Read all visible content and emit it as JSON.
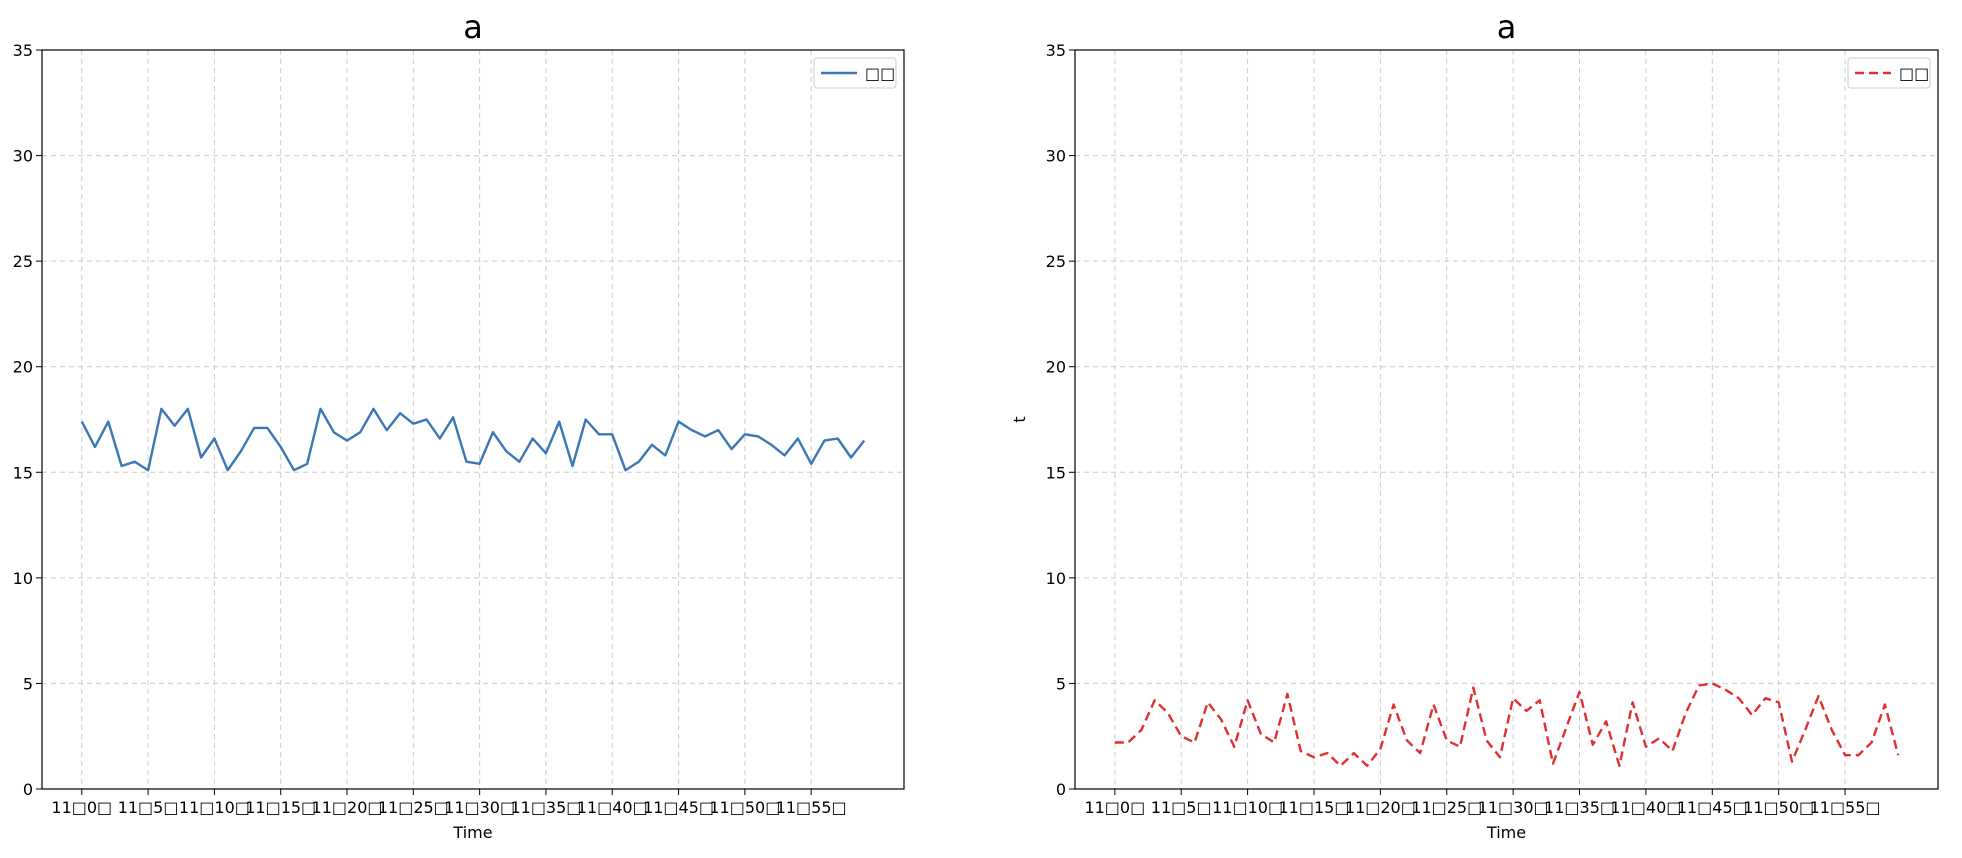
{
  "chart_data": [
    {
      "type": "line",
      "title": "a",
      "xlabel": "Time",
      "ylabel": "",
      "ylim": [
        0,
        35
      ],
      "yticks": [
        0,
        5,
        10,
        15,
        20,
        25,
        30,
        35
      ],
      "x": [
        0,
        1,
        2,
        3,
        4,
        5,
        6,
        7,
        8,
        9,
        10,
        11,
        12,
        13,
        14,
        15,
        16,
        17,
        18,
        19,
        20,
        21,
        22,
        23,
        24,
        25,
        26,
        27,
        28,
        29,
        30,
        31,
        32,
        33,
        34,
        35,
        36,
        37,
        38,
        39,
        40,
        41,
        42,
        43,
        44,
        45,
        46,
        47,
        48,
        49,
        50,
        51,
        52,
        53,
        54,
        55,
        56,
        57,
        58,
        59
      ],
      "xticks": [
        0,
        5,
        10,
        15,
        20,
        25,
        30,
        35,
        40,
        45,
        50,
        55
      ],
      "xtick_labels": [
        "11□0□",
        "11□5□",
        "11□10□",
        "11□15□",
        "11□20□",
        "11□25□",
        "11□30□",
        "11□35□",
        "11□40□",
        "11□45□",
        "11□50□",
        "11□55□"
      ],
      "grid": true,
      "legend_position": "top-right",
      "series": [
        {
          "name": "□□",
          "color": "#3a78b5",
          "style": "solid",
          "values": [
            17.4,
            16.2,
            17.4,
            15.3,
            15.5,
            15.1,
            18.0,
            17.2,
            18.0,
            15.7,
            16.6,
            15.1,
            16.0,
            17.1,
            17.1,
            16.2,
            15.1,
            15.4,
            18.0,
            16.9,
            16.5,
            16.9,
            18.0,
            17.0,
            17.8,
            17.3,
            17.5,
            16.6,
            17.6,
            15.5,
            15.4,
            16.9,
            16.0,
            15.5,
            16.6,
            15.9,
            17.4,
            15.3,
            17.5,
            16.8,
            16.8,
            15.1,
            15.5,
            16.3,
            15.8,
            17.4,
            17.0,
            16.7,
            17.0,
            16.1,
            16.8,
            16.7,
            16.3,
            15.8,
            16.6,
            15.4,
            16.5,
            16.6,
            15.7,
            16.5
          ]
        }
      ]
    },
    {
      "type": "line",
      "title": "a",
      "xlabel": "Time",
      "ylabel": "t",
      "ylim": [
        0,
        35
      ],
      "yticks": [
        0,
        5,
        10,
        15,
        20,
        25,
        30,
        35
      ],
      "x": [
        0,
        1,
        2,
        3,
        4,
        5,
        6,
        7,
        8,
        9,
        10,
        11,
        12,
        13,
        14,
        15,
        16,
        17,
        18,
        19,
        20,
        21,
        22,
        23,
        24,
        25,
        26,
        27,
        28,
        29,
        30,
        31,
        32,
        33,
        34,
        35,
        36,
        37,
        38,
        39,
        40,
        41,
        42,
        43,
        44,
        45,
        46,
        47,
        48,
        49,
        50,
        51,
        52,
        53,
        54,
        55,
        56,
        57,
        58,
        59
      ],
      "xticks": [
        0,
        5,
        10,
        15,
        20,
        25,
        30,
        35,
        40,
        45,
        50,
        55
      ],
      "xtick_labels": [
        "11□0□",
        "11□5□",
        "11□10□",
        "11□15□",
        "11□20□",
        "11□25□",
        "11□30□",
        "11□35□",
        "11□40□",
        "11□45□",
        "11□50□",
        "11□55□"
      ],
      "grid": true,
      "legend_position": "top-right",
      "series": [
        {
          "name": "□□",
          "color": "#e03030",
          "style": "dashed",
          "values": [
            2.2,
            2.2,
            2.8,
            4.2,
            3.6,
            2.5,
            2.2,
            4.1,
            3.3,
            2.0,
            4.2,
            2.6,
            2.2,
            4.5,
            1.8,
            1.5,
            1.7,
            1.1,
            1.7,
            1.1,
            1.9,
            4.0,
            2.3,
            1.7,
            4.0,
            2.3,
            2.0,
            4.8,
            2.3,
            1.5,
            4.3,
            3.7,
            4.2,
            1.2,
            2.9,
            4.6,
            2.1,
            3.2,
            1.1,
            4.1,
            2.0,
            2.4,
            1.8,
            3.6,
            4.9,
            5.0,
            4.7,
            4.3,
            3.5,
            4.3,
            4.1,
            1.3,
            2.8,
            4.4,
            2.8,
            1.6,
            1.6,
            2.2,
            4.0,
            1.6
          ]
        }
      ]
    }
  ]
}
